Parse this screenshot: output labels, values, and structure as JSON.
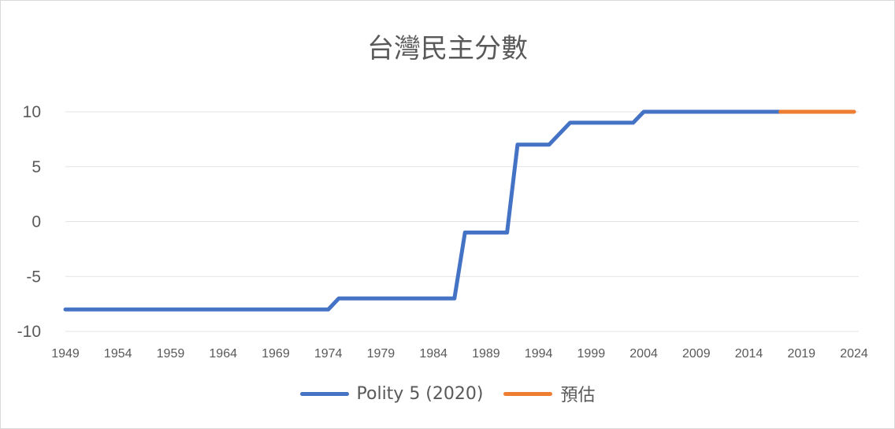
{
  "chart_data": {
    "type": "line",
    "title": "台灣民主分數",
    "xlabel": "",
    "ylabel": "",
    "xlim": [
      1949,
      2024
    ],
    "ylim": [
      -10,
      10
    ],
    "y_ticks": [
      10,
      5,
      0,
      -5,
      -10
    ],
    "x_ticks": [
      1949,
      1954,
      1959,
      1964,
      1969,
      1974,
      1979,
      1984,
      1989,
      1994,
      1999,
      2004,
      2009,
      2014,
      2019,
      2024
    ],
    "grid": "horizontal",
    "legend_position": "bottom",
    "series": [
      {
        "name": "Polity 5 (2020)",
        "color": "#4472C4",
        "points": [
          [
            1949,
            -8
          ],
          [
            1974,
            -8
          ],
          [
            1975,
            -7
          ],
          [
            1986,
            -7
          ],
          [
            1987,
            -1
          ],
          [
            1991,
            -1
          ],
          [
            1992,
            7
          ],
          [
            1995,
            7
          ],
          [
            1997,
            9
          ],
          [
            2003,
            9
          ],
          [
            2004,
            10
          ],
          [
            2017,
            10
          ]
        ]
      },
      {
        "name": "預估",
        "color": "#ED7D31",
        "points": [
          [
            2017,
            10
          ],
          [
            2024,
            10
          ]
        ]
      }
    ]
  }
}
